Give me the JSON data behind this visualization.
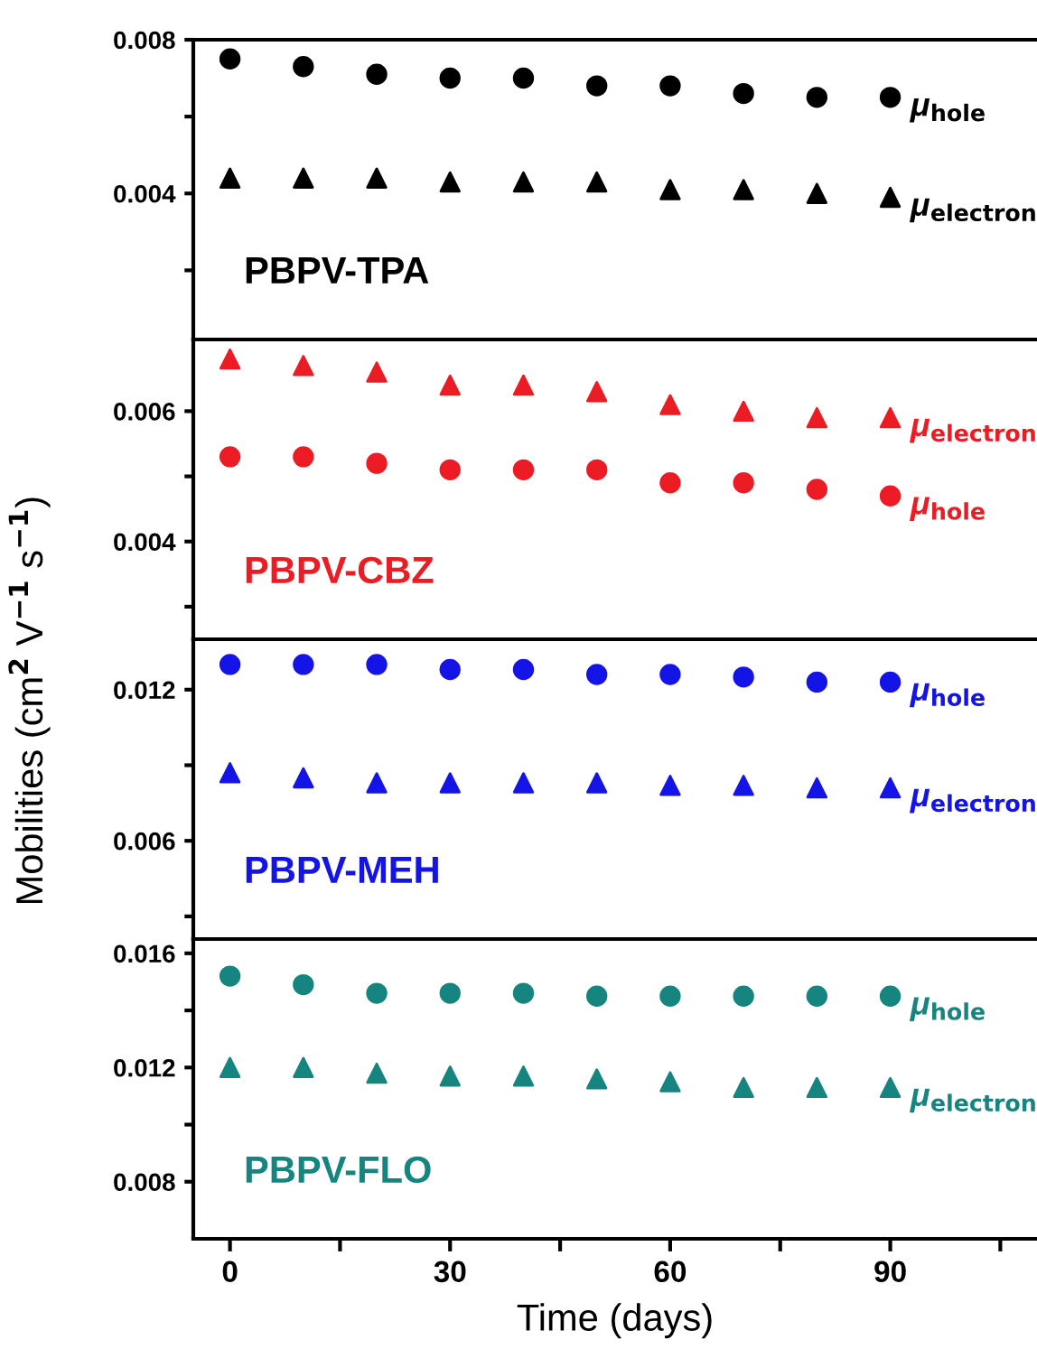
{
  "chart_data": [
    {
      "type": "scatter",
      "x": [
        0,
        10,
        20,
        30,
        40,
        50,
        60,
        70,
        80,
        90
      ],
      "xlim": [
        -5,
        110
      ],
      "ylim": [
        0.0002,
        0.008
      ],
      "yticks": [
        {
          "value": 0.002,
          "label": null
        },
        0.004,
        {
          "value": 0.006,
          "label": null
        },
        0.008
      ],
      "tick_labels": "y",
      "legend": false,
      "annotations": [
        "PBPV-TPA"
      ],
      "series": [
        {
          "name": "μ$_{hole}$",
          "color": "#000000",
          "marker": "circle",
          "values": [
            0.0075,
            0.0073,
            0.0071,
            0.007,
            0.007,
            0.0068,
            0.0068,
            0.0066,
            0.0065,
            0.0065
          ]
        },
        {
          "name": "μ$_{electron}$",
          "color": "#000000",
          "marker": "triangle",
          "values": [
            0.0044,
            0.0044,
            0.0044,
            0.0043,
            0.0043,
            0.0043,
            0.0041,
            0.0041,
            0.004,
            0.0039
          ]
        }
      ]
    },
    {
      "type": "scatter",
      "x": [
        0,
        10,
        20,
        30,
        40,
        50,
        60,
        70,
        80,
        90
      ],
      "xlim": [
        -5,
        110
      ],
      "ylim": [
        0.0025,
        0.0071
      ],
      "yticks": [
        {
          "value": 0.003,
          "label": null
        },
        0.004,
        {
          "value": 0.005,
          "label": null
        },
        0.006
      ],
      "tick_labels": "y",
      "legend": false,
      "annotations": [
        "PBPV-CBZ"
      ],
      "series": [
        {
          "name": "μ$_{electron}$",
          "color": "#ec1c24",
          "marker": "triangle",
          "values": [
            0.0068,
            0.0067,
            0.0066,
            0.0064,
            0.0064,
            0.0063,
            0.0061,
            0.006,
            0.0059,
            0.0059
          ]
        },
        {
          "name": "μ$_{hole}$",
          "color": "#ec1c24",
          "marker": "circle",
          "values": [
            0.0053,
            0.0053,
            0.0052,
            0.0051,
            0.0051,
            0.0051,
            0.0049,
            0.0049,
            0.0048,
            0.0047
          ]
        }
      ]
    },
    {
      "type": "scatter",
      "x": [
        0,
        10,
        20,
        30,
        40,
        50,
        60,
        70,
        80,
        90
      ],
      "xlim": [
        -5,
        110
      ],
      "ylim": [
        0.0021,
        0.014
      ],
      "yticks": [
        {
          "value": 0.003,
          "label": null
        },
        0.006,
        {
          "value": 0.009,
          "label": null
        },
        0.012
      ],
      "tick_labels": "y",
      "legend": false,
      "annotations": [
        "PBPV-MEH"
      ],
      "ylabel": "Mobilities (cm$^{2}$ V$^{−1}$ s$^{−1}$)",
      "series": [
        {
          "name": "μ$_{hole}$",
          "color": "#1414e6",
          "marker": "circle",
          "values": [
            0.013,
            0.013,
            0.013,
            0.0128,
            0.0128,
            0.0126,
            0.0126,
            0.0125,
            0.0123,
            0.0123
          ]
        },
        {
          "name": "μ$_{electron}$",
          "color": "#1414e6",
          "marker": "triangle",
          "values": [
            0.0087,
            0.0085,
            0.0083,
            0.0083,
            0.0083,
            0.0083,
            0.0082,
            0.0082,
            0.0081,
            0.0081
          ]
        }
      ]
    },
    {
      "type": "scatter",
      "x": [
        0,
        10,
        20,
        30,
        40,
        50,
        60,
        70,
        80,
        90
      ],
      "xlim": [
        -5,
        110
      ],
      "ylim": [
        0.006,
        0.0165
      ],
      "xticks": [
        0,
        {
          "value": 15,
          "label": null
        },
        30,
        {
          "value": 45,
          "label": null
        },
        60,
        {
          "value": 75,
          "label": null
        },
        90,
        {
          "value": 105,
          "label": null
        }
      ],
      "yticks": [
        0.008,
        {
          "value": 0.01,
          "label": null
        },
        0.012,
        {
          "value": 0.014,
          "label": null
        },
        0.016
      ],
      "legend": false,
      "annotations": [
        "PBPV-FLO"
      ],
      "xlabel": "Time (days)",
      "series": [
        {
          "name": "μ$_{hole}$",
          "color": "#16857f",
          "marker": "circle",
          "values": [
            0.0152,
            0.0149,
            0.0146,
            0.0146,
            0.0146,
            0.0145,
            0.0145,
            0.0145,
            0.0145,
            0.0145
          ]
        },
        {
          "name": "μ$_{electron}$",
          "color": "#16857f",
          "marker": "triangle",
          "values": [
            0.012,
            0.012,
            0.0118,
            0.0117,
            0.0117,
            0.0116,
            0.0115,
            0.0113,
            0.0113,
            0.0113
          ]
        }
      ]
    }
  ]
}
